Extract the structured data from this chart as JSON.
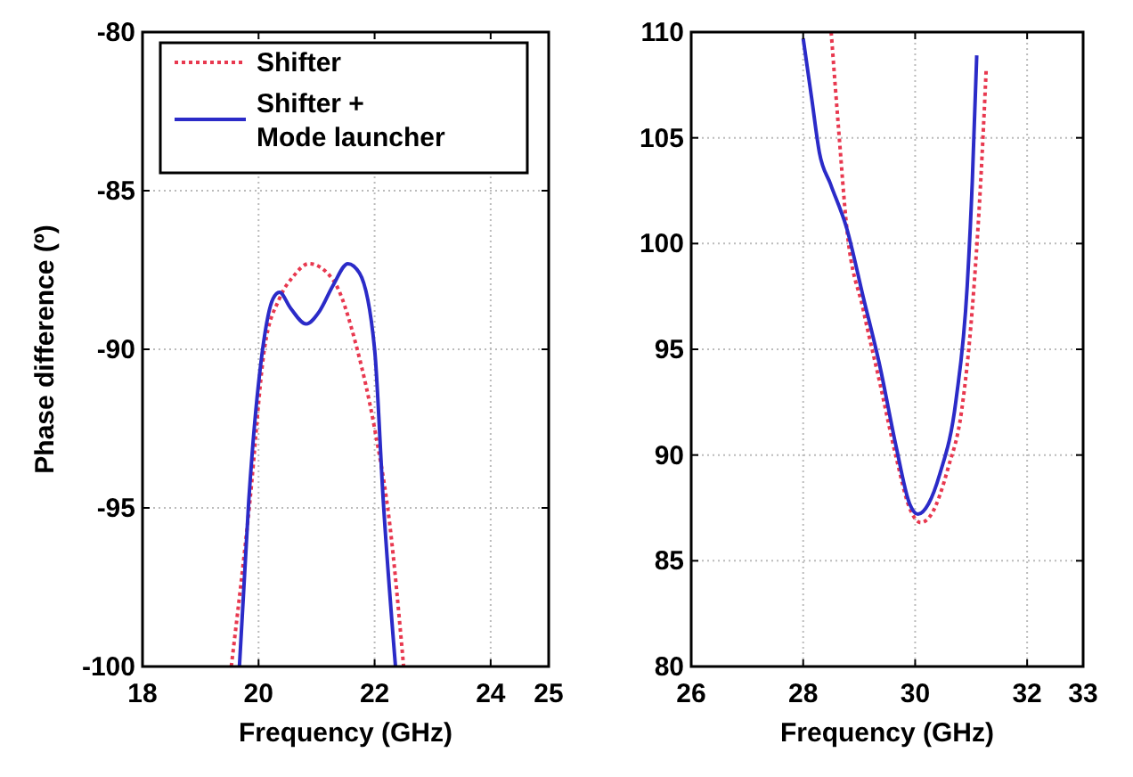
{
  "chart_data": [
    {
      "type": "line",
      "xlabel": "Frequency (GHz)",
      "ylabel": "Phase difference (º)",
      "xlim": [
        18,
        25
      ],
      "xticks": [
        18,
        20,
        22,
        24,
        25
      ],
      "ylim": [
        -100,
        -80
      ],
      "yticks": [
        -100,
        -95,
        -90,
        -85,
        -80
      ],
      "grid": true,
      "legend": "top",
      "series": [
        {
          "name": "Shifter",
          "color": "#e8384f",
          "line_style": "dotted",
          "x": [
            19.53,
            19.85,
            20.1,
            20.36,
            20.6,
            20.87,
            21.28,
            21.7,
            22,
            22.26,
            22.5
          ],
          "values": [
            -100,
            -94.8,
            -90,
            -88.4,
            -87.7,
            -87.3,
            -87.8,
            -90,
            -92.5,
            -95.5,
            -100
          ]
        },
        {
          "name": "Shifter +\nMode launcher",
          "color": "#2b2bc8",
          "line_style": "solid",
          "x": [
            19.67,
            19.83,
            20.07,
            20.25,
            20.36,
            20.55,
            20.82,
            21.05,
            21.28,
            21.54,
            21.74,
            22,
            22.15,
            22.36
          ],
          "values": [
            -100,
            -94.8,
            -90,
            -88.4,
            -88.2,
            -88.7,
            -89.2,
            -88.8,
            -88,
            -87.3,
            -87.6,
            -90,
            -94.8,
            -100
          ]
        }
      ]
    },
    {
      "type": "line",
      "xlabel": "Frequency (GHz)",
      "xlim": [
        26,
        33
      ],
      "xticks": [
        26,
        28,
        30,
        32,
        33
      ],
      "ylim": [
        80,
        110
      ],
      "yticks": [
        80,
        85,
        90,
        95,
        100,
        105,
        110
      ],
      "grid": true,
      "series": [
        {
          "color": "#e8384f",
          "line_style": "dotted",
          "x": [
            28.5,
            28.63,
            28.78,
            29.07,
            29.37,
            29.66,
            29.9,
            30.1,
            30.29,
            30.59,
            30.83,
            31.02,
            31.17,
            31.27
          ],
          "values": [
            110,
            105.5,
            100.7,
            96.9,
            93.4,
            89.9,
            87.5,
            86.8,
            87.2,
            89.4,
            92.1,
            96.9,
            102.9,
            108.3
          ]
        },
        {
          "color": "#2b2bc8",
          "line_style": "solid",
          "x": [
            28,
            28.15,
            28.29,
            28.49,
            28.78,
            29.07,
            29.37,
            29.66,
            29.9,
            30.05,
            30.24,
            30.44,
            30.73,
            30.93,
            31.02,
            31.1
          ],
          "values": [
            109.7,
            106.9,
            104.3,
            102.8,
            100.7,
            97.5,
            94.2,
            90.4,
            87.7,
            87.2,
            87.7,
            89.1,
            92.6,
            98,
            102.9,
            108.9
          ]
        }
      ]
    }
  ]
}
